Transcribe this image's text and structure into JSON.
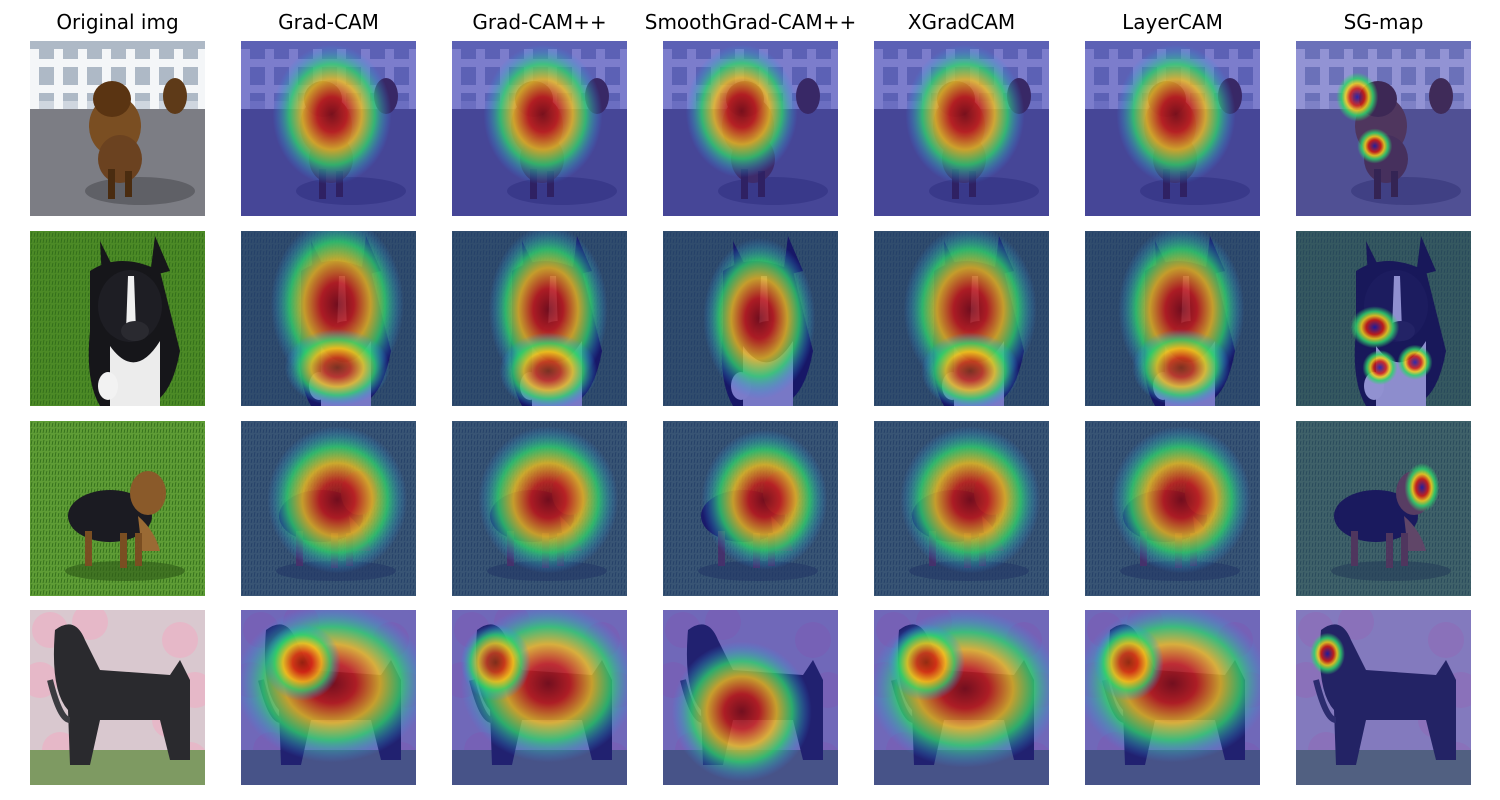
{
  "columns": [
    {
      "title": "Original img"
    },
    {
      "title": "Grad-CAM"
    },
    {
      "title": "Grad-CAM++"
    },
    {
      "title": "SmoothGrad-CAM++"
    },
    {
      "title": "XGradCAM"
    },
    {
      "title": "LayerCAM"
    },
    {
      "title": "SG-map"
    }
  ],
  "rows": [
    {
      "subject": "terrier running on road"
    },
    {
      "subject": "black and white dog sitting on grass"
    },
    {
      "subject": "yorkshire terrier on grass"
    },
    {
      "subject": "black curly dog in front of flowers"
    }
  ],
  "colors": {
    "heat_low": "#1a1aa8",
    "heat_mid": "#2fd36b",
    "heat_high": "#d41c10",
    "grass": "#3f7a22",
    "road": "#6b6b72"
  }
}
